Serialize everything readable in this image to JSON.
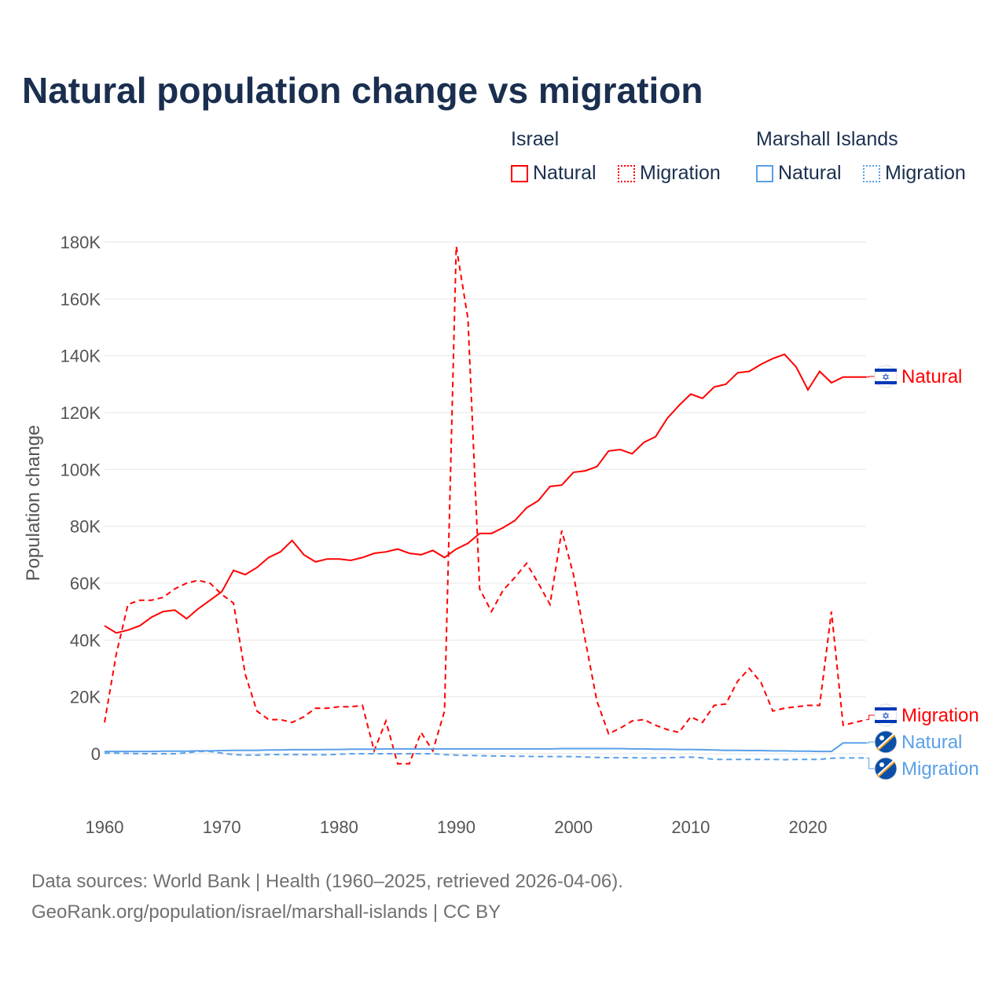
{
  "title": "Natural population change vs migration",
  "legend": {
    "groups": [
      {
        "name": "Israel",
        "items": [
          "Natural",
          "Migration"
        ],
        "color": "#ff0000"
      },
      {
        "name": "Marshall Islands",
        "items": [
          "Natural",
          "Migration"
        ],
        "color": "#5aa0e8"
      }
    ]
  },
  "footer": {
    "line1": "Data sources: World Bank | Health (1960–2025, retrieved 2026-04-06).",
    "line2": "GeoRank.org/population/israel/marshall-islands | CC BY"
  },
  "chart_data": {
    "type": "line",
    "title": "Natural population change vs migration",
    "xlabel": "",
    "ylabel": "Population change",
    "xlim": [
      1960,
      2025
    ],
    "ylim": [
      -10,
      180
    ],
    "x_ticks": [
      "1960",
      "1970",
      "1980",
      "1990",
      "2000",
      "2010",
      "2020"
    ],
    "y_ticks": [
      "0",
      "20K",
      "40K",
      "60K",
      "80K",
      "100K",
      "120K",
      "140K",
      "160K",
      "180K"
    ],
    "units": "thousands",
    "x": [
      1960,
      1961,
      1962,
      1963,
      1964,
      1965,
      1966,
      1967,
      1968,
      1969,
      1970,
      1971,
      1972,
      1973,
      1974,
      1975,
      1976,
      1977,
      1978,
      1979,
      1980,
      1981,
      1982,
      1983,
      1984,
      1985,
      1986,
      1987,
      1988,
      1989,
      1990,
      1991,
      1992,
      1993,
      1994,
      1995,
      1996,
      1997,
      1998,
      1999,
      2000,
      2001,
      2002,
      2003,
      2004,
      2005,
      2006,
      2007,
      2008,
      2009,
      2010,
      2011,
      2012,
      2013,
      2014,
      2015,
      2016,
      2017,
      2018,
      2019,
      2020,
      2021,
      2022,
      2023,
      2024,
      2025
    ],
    "series": [
      {
        "name": "Israel Natural",
        "end_label": "Natural",
        "color": "#ff0000",
        "dash": false,
        "values": [
          45,
          42.5,
          43.5,
          45,
          48,
          50,
          50.5,
          47.5,
          51,
          54,
          57,
          64.5,
          63,
          65.5,
          69,
          71,
          75,
          70,
          67.5,
          68.5,
          68.5,
          68,
          69,
          70.5,
          71,
          72,
          70.5,
          70,
          71.5,
          69,
          72,
          74,
          77.5,
          77.5,
          79.5,
          82,
          86.5,
          89,
          94,
          94.5,
          99,
          99.5,
          101,
          106.5,
          107,
          105.5,
          109.5,
          111.5,
          118,
          122.5,
          126.5,
          125,
          129,
          130,
          134,
          134.5,
          137,
          139,
          140.5,
          136,
          128,
          134.5,
          130.5,
          132.5,
          132.5,
          132.5
        ]
      },
      {
        "name": "Israel Migration",
        "end_label": "Migration",
        "color": "#ff0000",
        "dash": true,
        "values": [
          11,
          35,
          52.5,
          54,
          54,
          55,
          58,
          60,
          61,
          60,
          56,
          53,
          28,
          15,
          12,
          12,
          11,
          13,
          16,
          16,
          16.5,
          16.5,
          17,
          1,
          11.5,
          -3.5,
          -3.5,
          7.5,
          1,
          15,
          178.5,
          153,
          58,
          50,
          57.5,
          62,
          67,
          60,
          52.5,
          78.5,
          63,
          40,
          18.5,
          7,
          9,
          11.5,
          12,
          10,
          8.5,
          7.5,
          13,
          11,
          17,
          17.5,
          25.5,
          30,
          25,
          15,
          16,
          16.5,
          17,
          17,
          50,
          10,
          11,
          12
        ]
      },
      {
        "name": "Marshall Islands Natural",
        "end_label": "Natural",
        "color": "#5aa0e8",
        "dash": false,
        "values": [
          0.8,
          0.8,
          0.8,
          0.8,
          0.8,
          0.9,
          0.9,
          0.9,
          1.0,
          1.0,
          1.1,
          1.2,
          1.2,
          1.2,
          1.3,
          1.3,
          1.4,
          1.4,
          1.4,
          1.5,
          1.5,
          1.6,
          1.6,
          1.6,
          1.7,
          1.7,
          1.7,
          1.7,
          1.7,
          1.7,
          1.7,
          1.7,
          1.7,
          1.7,
          1.7,
          1.7,
          1.7,
          1.7,
          1.7,
          1.8,
          1.8,
          1.8,
          1.8,
          1.8,
          1.8,
          1.7,
          1.7,
          1.6,
          1.6,
          1.5,
          1.5,
          1.4,
          1.3,
          1.2,
          1.2,
          1.1,
          1.1,
          1.0,
          1.0,
          0.9,
          0.9,
          0.8,
          0.8,
          3.8,
          3.8,
          3.8
        ]
      },
      {
        "name": "Marshall Islands Migration",
        "end_label": "Migration",
        "color": "#5aa0e8",
        "dash": true,
        "values": [
          0.2,
          0.2,
          0.1,
          0,
          0,
          0,
          0,
          0.3,
          0.8,
          0.8,
          0.2,
          -0.3,
          -0.5,
          -0.5,
          -0.3,
          -0.3,
          -0.3,
          -0.3,
          -0.4,
          -0.4,
          -0.2,
          0,
          0,
          0,
          0,
          0,
          0,
          0,
          0,
          -0.3,
          -0.5,
          -0.6,
          -0.7,
          -0.8,
          -0.8,
          -0.9,
          -0.9,
          -1,
          -1,
          -1,
          -1,
          -1.2,
          -1.3,
          -1.4,
          -1.4,
          -1.4,
          -1.5,
          -1.5,
          -1.4,
          -1.3,
          -1.2,
          -1.5,
          -2,
          -2,
          -2,
          -2,
          -2,
          -2,
          -2.1,
          -2,
          -2,
          -2,
          -1.6,
          -1.5,
          -1.5,
          -1.5
        ]
      }
    ]
  }
}
